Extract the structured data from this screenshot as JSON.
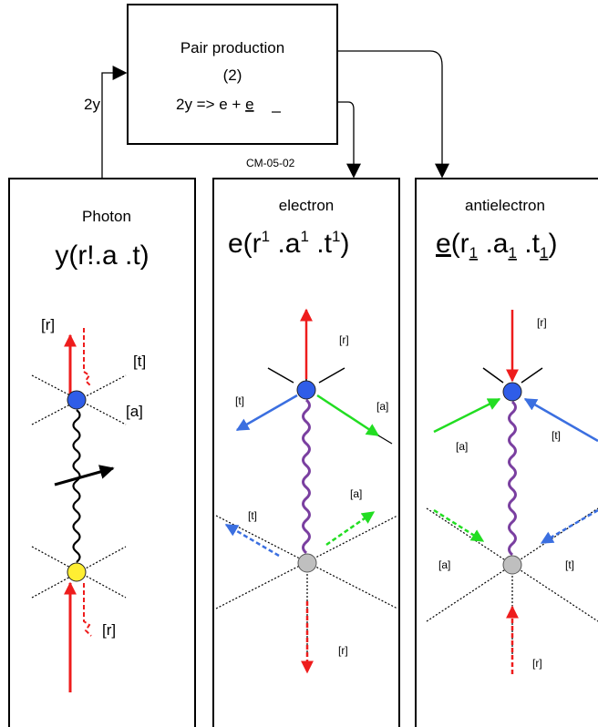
{
  "process_box": {
    "title": "Pair production",
    "number": "(2)",
    "equation_main": "2y => e + ",
    "equation_underlined": "e"
  },
  "input_label": "2y",
  "code_label": "CM-05-02",
  "panels": {
    "photon": {
      "title": "Photon",
      "formula": "y(r!.a .t)",
      "labels": {
        "r_top": "[r]",
        "t": "[t]",
        "a": "[a]",
        "r_bottom": "[r]"
      }
    },
    "electron": {
      "title": "electron",
      "formula_parts": [
        "e(r",
        "1",
        " .a",
        "1",
        " .t",
        "1",
        ")"
      ],
      "labels": {
        "r_top": "[r]",
        "t_top": "[t]",
        "a_top": "[a]",
        "a_mid": "[a]",
        "t_mid": "[t]",
        "r_bottom": "[r]"
      }
    },
    "antielectron": {
      "title": "antielectron",
      "formula_parts": [
        "e",
        "(r",
        "1",
        " .a",
        "1",
        " .t",
        "1",
        ")"
      ],
      "labels": {
        "r_top": "[r]",
        "a_top": "[a]",
        "t_top": "[t]",
        "a_mid": "[a]",
        "t_mid": "[t]",
        "r_bottom": "[r]"
      }
    }
  },
  "colors": {
    "red": "#ee1c1c",
    "green": "#22dd22",
    "blue": "#3b6fe0",
    "purple": "#7a3fa0",
    "node_blue": "#2f5de8",
    "node_yellow": "#ffee33",
    "node_gray": "#bfbfbf"
  }
}
